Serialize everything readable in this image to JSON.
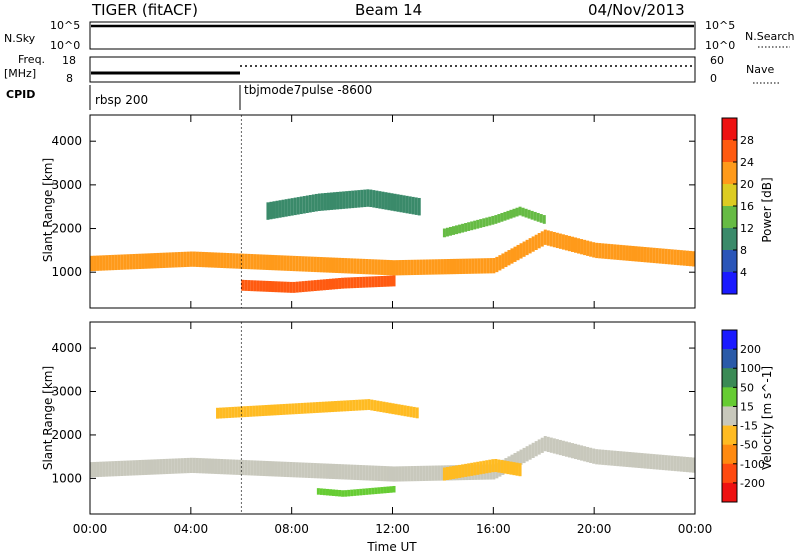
{
  "header": {
    "title": "TIGER (fitACF)",
    "beam": "Beam 14",
    "date": "04/Nov/2013"
  },
  "status_panels": {
    "nsky_label": "N.Sky",
    "nsky_ticks": [
      "10^5",
      "10^0"
    ],
    "nsearch_label": "N.Search",
    "nsearch_ticks": [
      "10^5",
      "10^0"
    ],
    "freq_label": "Freq.",
    "freq_unit": "[MHz]",
    "freq_ticks": [
      "18",
      "8"
    ],
    "nave_label": "Nave",
    "nave_ticks": [
      "60",
      "0"
    ],
    "cpid_label": "CPID",
    "cpid_segments": [
      {
        "name": "rbsp 200",
        "start": "00:00",
        "end": "06:00"
      },
      {
        "name": "tbjmode7pulse -8600",
        "start": "06:00",
        "end": "24:00"
      }
    ]
  },
  "chart_data": [
    {
      "type": "heatmap",
      "title": "",
      "xlabel": "",
      "ylabel": "Slant Range [km]",
      "xlim": [
        0,
        24
      ],
      "ylim": [
        180,
        4600
      ],
      "y_ticks": [
        "1000",
        "2000",
        "3000",
        "4000"
      ],
      "colorbar": {
        "label": "Power [dB]",
        "ticks": [
          "4",
          "8",
          "12",
          "16",
          "20",
          "24",
          "28"
        ],
        "colors": [
          "#1a1aff",
          "#2a55b8",
          "#3a8a6a",
          "#66bb44",
          "#ddcc22",
          "#ff9a1a",
          "#ff5a10",
          "#ee1111"
        ],
        "range": [
          0,
          32
        ]
      },
      "echo_bands": [
        {
          "x": [
            0,
            4,
            8,
            12,
            16,
            18,
            20,
            24
          ],
          "y": [
            1200,
            1300,
            1200,
            1100,
            1150,
            1800,
            1500,
            1300
          ],
          "thickness": 350,
          "value": 20
        },
        {
          "x": [
            6,
            8,
            10,
            12
          ],
          "y": [
            700,
            650,
            750,
            800
          ],
          "thickness": 250,
          "value": 24
        },
        {
          "x": [
            7,
            9,
            11,
            13
          ],
          "y": [
            2400,
            2600,
            2700,
            2500
          ],
          "thickness": 400,
          "value": 10
        },
        {
          "x": [
            14,
            16,
            17,
            18
          ],
          "y": [
            1900,
            2200,
            2400,
            2200
          ],
          "thickness": 200,
          "value": 12
        }
      ]
    },
    {
      "type": "heatmap",
      "title": "",
      "xlabel": "Time UT",
      "ylabel": "Slant Range [km]",
      "xlim": [
        0,
        24
      ],
      "ylim": [
        180,
        4600
      ],
      "x_ticks": [
        "00:00",
        "04:00",
        "08:00",
        "12:00",
        "16:00",
        "20:00",
        "00:00"
      ],
      "y_ticks": [
        "1000",
        "2000",
        "3000",
        "4000"
      ],
      "colorbar": {
        "label": "Velocity [m s^-1]",
        "ticks": [
          "200",
          "100",
          "50",
          "15",
          "-15",
          "-50",
          "-100",
          "-200"
        ],
        "colors": [
          "#1a1aff",
          "#2a5aa8",
          "#3a8a55",
          "#66cc33",
          "#c8c8bc",
          "#ffbb22",
          "#ff8a10",
          "#ff4a10",
          "#ee1111"
        ],
        "range": [
          -250,
          250
        ]
      },
      "echo_bands": [
        {
          "x": [
            0,
            4,
            8,
            12,
            16,
            18,
            20,
            24
          ],
          "y": [
            1200,
            1300,
            1200,
            1100,
            1150,
            1800,
            1500,
            1300
          ],
          "thickness": 350,
          "value": 0
        },
        {
          "x": [
            9,
            10,
            11,
            12
          ],
          "y": [
            700,
            650,
            700,
            750
          ],
          "thickness": 150,
          "value": 60
        },
        {
          "x": [
            14,
            15,
            16,
            17
          ],
          "y": [
            1100,
            1200,
            1300,
            1200
          ],
          "thickness": 300,
          "value": -80
        },
        {
          "x": [
            5,
            8,
            11,
            13
          ],
          "y": [
            2500,
            2600,
            2700,
            2500
          ],
          "thickness": 250,
          "value": -40
        }
      ]
    }
  ]
}
